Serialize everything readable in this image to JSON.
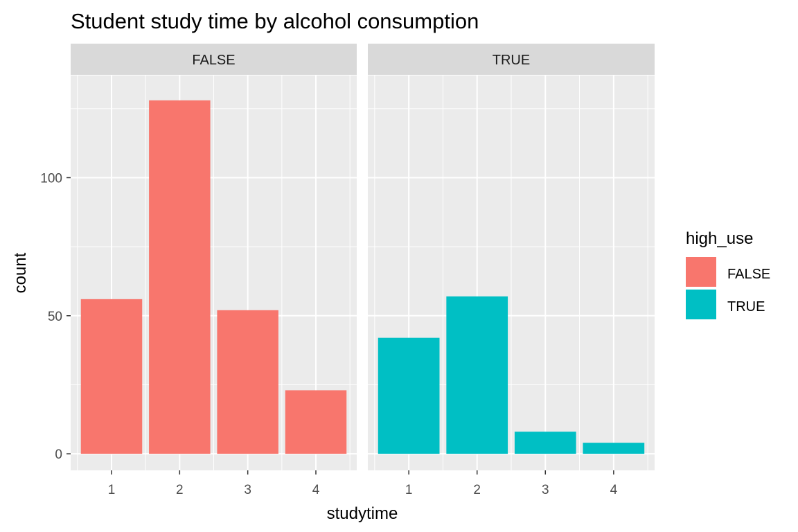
{
  "chart_data": {
    "type": "bar",
    "title": "Student study time by alcohol consumption",
    "xlabel": "studytime",
    "ylabel": "count",
    "categories": [
      "1",
      "2",
      "3",
      "4"
    ],
    "ylim": [
      -6,
      137
    ],
    "y_ticks": [
      0,
      50,
      100
    ],
    "y_tick_labels": [
      "0",
      "50",
      "100"
    ],
    "grid": true,
    "facets": [
      {
        "label": "FALSE",
        "fill": "FALSE",
        "values": [
          56,
          128,
          52,
          23
        ]
      },
      {
        "label": "TRUE",
        "fill": "TRUE",
        "values": [
          42,
          57,
          8,
          4
        ]
      }
    ],
    "legend": {
      "title": "high_use",
      "position": "right",
      "entries": [
        {
          "label": "FALSE",
          "color": "#F8766D"
        },
        {
          "label": "TRUE",
          "color": "#00BFC4"
        }
      ]
    }
  }
}
